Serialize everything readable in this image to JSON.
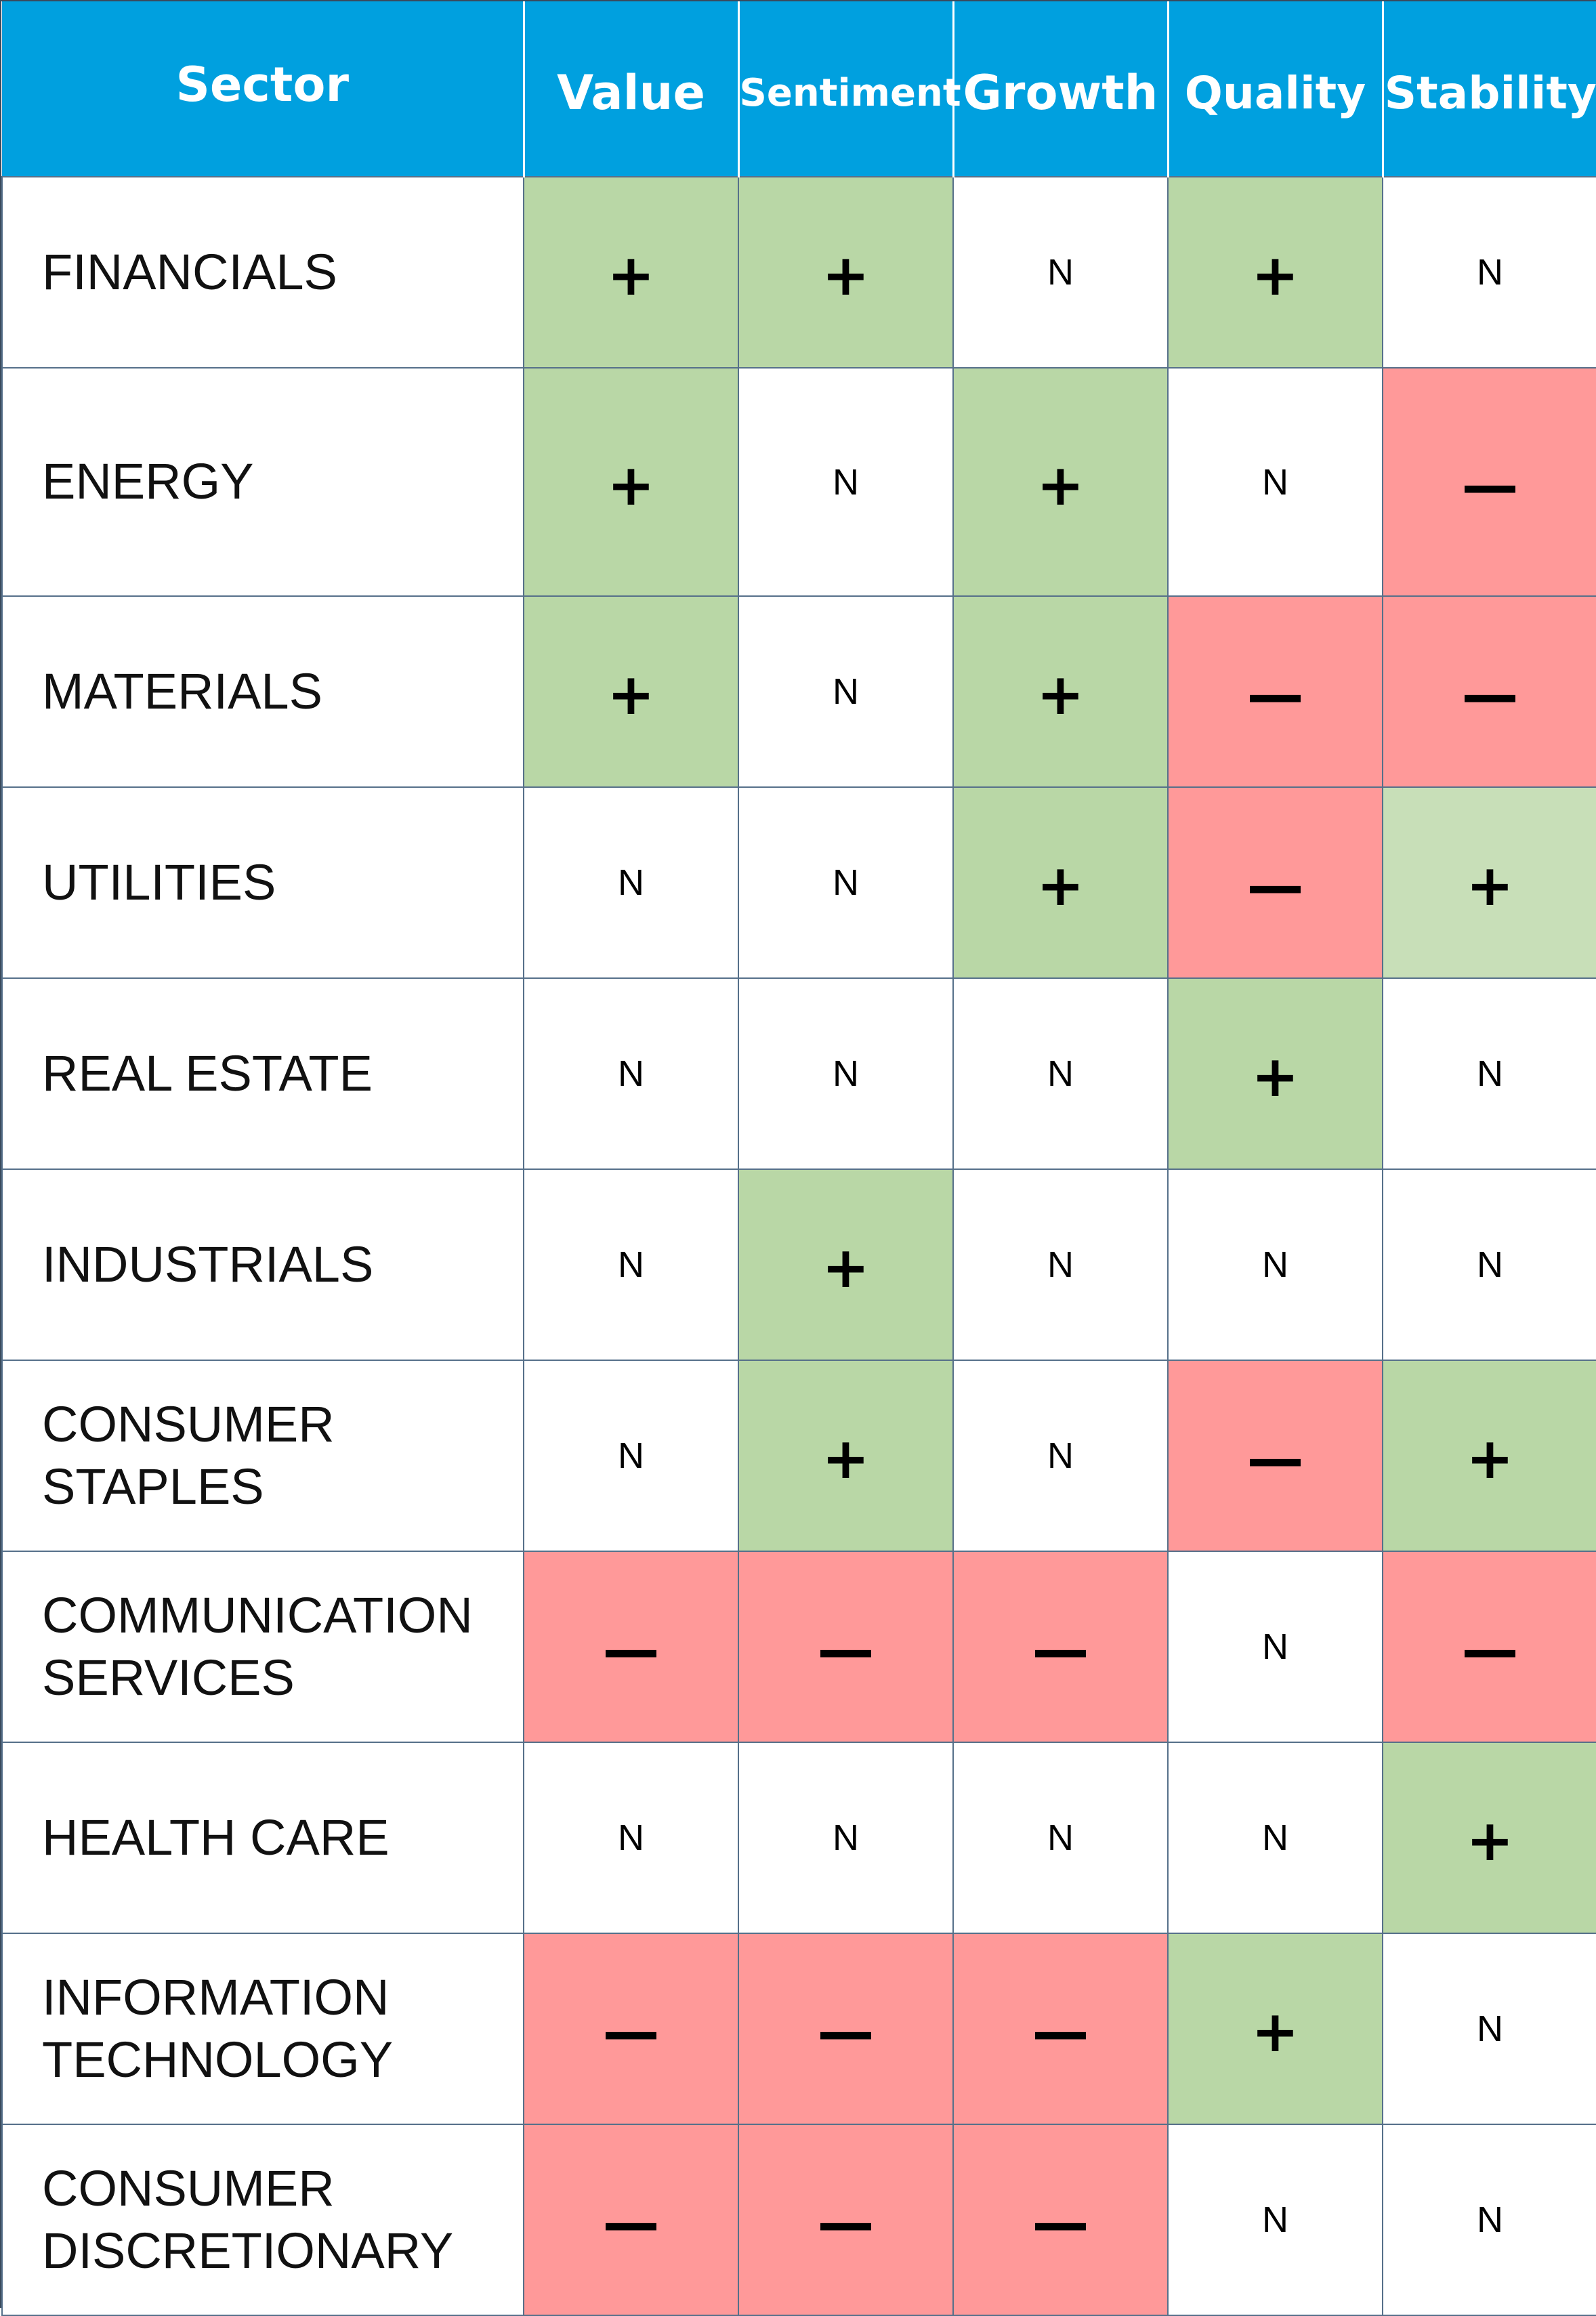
{
  "chart_data": {
    "type": "table",
    "columns": [
      "Sector",
      "Value",
      "Sentiment",
      "Growth",
      "Quality",
      "Stability"
    ],
    "rows": [
      {
        "sector": "FINANCIALS",
        "cells": [
          "+",
          "+",
          "N",
          "+",
          "N"
        ]
      },
      {
        "sector": "ENERGY",
        "cells": [
          "+",
          "N",
          "+",
          "N",
          "—"
        ]
      },
      {
        "sector": "MATERIALS",
        "cells": [
          "+",
          "N",
          "+",
          "—",
          "—"
        ]
      },
      {
        "sector": "UTILITIES",
        "cells": [
          "N",
          "N",
          "+",
          "—",
          "+"
        ]
      },
      {
        "sector": "REAL ESTATE",
        "cells": [
          "N",
          "N",
          "N",
          "+",
          "N"
        ]
      },
      {
        "sector": "INDUSTRIALS",
        "cells": [
          "N",
          "+",
          "N",
          "N",
          "N"
        ]
      },
      {
        "sector": "CONSUMER\nSTAPLES",
        "cells": [
          "N",
          "+",
          "N",
          "—",
          "+"
        ]
      },
      {
        "sector": "COMMUNICATION\nSERVICES",
        "cells": [
          "—",
          "—",
          "—",
          "N",
          "—"
        ]
      },
      {
        "sector": "HEALTH CARE",
        "cells": [
          "N",
          "N",
          "N",
          "N",
          "+"
        ]
      },
      {
        "sector": "INFORMATION\nTECHNOLOGY",
        "cells": [
          "—",
          "—",
          "—",
          "+",
          "N"
        ]
      },
      {
        "sector": "CONSUMER\nDISCRETIONARY",
        "cells": [
          "—",
          "—",
          "—",
          "N",
          "N"
        ]
      }
    ],
    "colors": {
      "header": "#00a0df",
      "positive": "#b9d7a6",
      "positive_light": "#c8dfb8",
      "negative": "#ff9999",
      "neutral": "#ffffff",
      "grid": "#56708a"
    }
  }
}
